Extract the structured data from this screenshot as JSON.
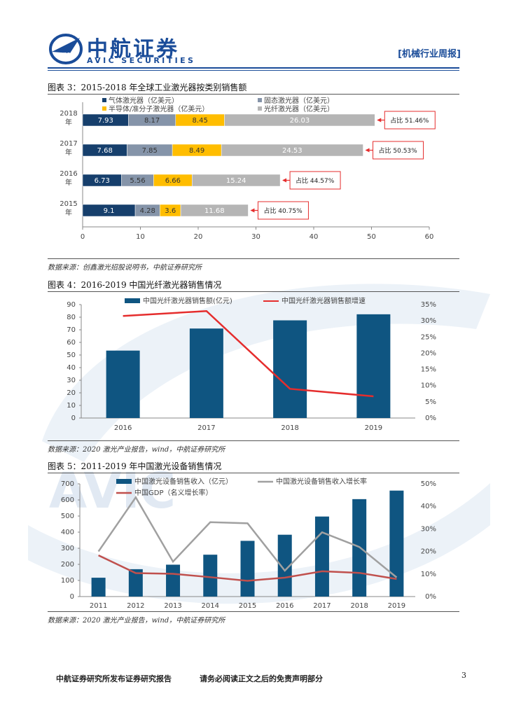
{
  "header": {
    "brand_cn": "中航证券",
    "brand_en": "AVIC SECURITIES",
    "logo_text": "AVIC",
    "report_type": "[机械行业周报]"
  },
  "colors": {
    "brand_blue": "#1a4c99",
    "dark_navy": "#163f6c",
    "steel_gray": "#8594a9",
    "gold": "#ffbd00",
    "light_gray": "#b5b5b5",
    "bar_blue": "#0f5581",
    "red": "#e52d2d",
    "line_gray": "#a0a0a0",
    "dark_red": "#c0504d"
  },
  "figures": [
    {
      "title": "图表 3：2015-2018 年全球工业激光器按类别销售额",
      "source": "数据来源：创鑫激光招股说明书，中航证券研究所",
      "chart_data": {
        "type": "bar",
        "orientation": "horizontal-stacked",
        "categories": [
          "2018年",
          "2017年",
          "2016年",
          "2015年"
        ],
        "category_lines": [
          [
            "2018",
            "年"
          ],
          [
            "2017",
            "年"
          ],
          [
            "2016",
            "年"
          ],
          [
            "2015",
            "年"
          ]
        ],
        "series": [
          {
            "name": "气体激光器（亿美元）",
            "values": [
              7.93,
              7.68,
              6.73,
              9.1
            ]
          },
          {
            "name": "固态激光器（亿美元）",
            "values": [
              8.17,
              7.85,
              5.56,
              4.28
            ]
          },
          {
            "name": "半导体/准分子激光器（亿美元）",
            "values": [
              8.45,
              8.49,
              6.66,
              3.6
            ]
          },
          {
            "name": "光纤激光器（亿美元）",
            "values": [
              26.03,
              24.53,
              15.24,
              11.68
            ]
          }
        ],
        "annotations": [
          "占比 51.46%",
          "占比 50.53%",
          "占比 44.57%",
          "占比 40.75%"
        ],
        "xlim": [
          0,
          60
        ],
        "xticks": [
          "0",
          "10",
          "20",
          "30",
          "40",
          "50",
          "60"
        ]
      }
    },
    {
      "title": "图表 4：2016-2019 中国光纤激光器销售情况",
      "source": "数据来源：2020 激光产业报告，wind，中航证券研究所",
      "chart_data": {
        "type": "bar",
        "categories": [
          "2016",
          "2017",
          "2018",
          "2019"
        ],
        "series": [
          {
            "name": "中国光纤激光器销售额(亿元)",
            "type": "bar",
            "axis": "left",
            "values": [
              53.5,
              71,
              77.5,
              82.3
            ]
          },
          {
            "name": "中国光纤激光器销售额增速",
            "type": "line",
            "axis": "right",
            "values": [
              0.315,
              0.33,
              0.09,
              0.067
            ]
          }
        ],
        "ylim": [
          0,
          90
        ],
        "yticks": [
          "0",
          "10",
          "20",
          "30",
          "40",
          "50",
          "60",
          "70",
          "80",
          "90"
        ],
        "y2lim": [
          0,
          0.35
        ],
        "y2ticks": [
          "0%",
          "5%",
          "10%",
          "15%",
          "20%",
          "25%",
          "30%",
          "35%"
        ]
      }
    },
    {
      "title": "图表 5：2011-2019 年中国激光设备销售情况",
      "source": "数据来源：2020 激光产业报告，wind，中航证券研究所",
      "chart_data": {
        "type": "bar",
        "categories": [
          "2011",
          "2012",
          "2013",
          "2014",
          "2015",
          "2016",
          "2017",
          "2018",
          "2019"
        ],
        "series": [
          {
            "name": "中国激光设备销售收入（亿元）",
            "type": "bar",
            "axis": "left",
            "values": [
              117,
              170,
              198,
              260,
              346,
              384,
              497,
              605,
              658
            ]
          },
          {
            "name": "中国激光设备销售收入增长率",
            "type": "line",
            "axis": "right",
            "values": [
              0.2,
              0.44,
              0.155,
              0.33,
              0.325,
              0.115,
              0.285,
              0.22,
              0.085
            ]
          },
          {
            "name": "中国GDP（名义增长率）",
            "type": "line",
            "axis": "right",
            "values": [
              0.183,
              0.104,
              0.101,
              0.086,
              0.07,
              0.084,
              0.112,
              0.105,
              0.078
            ]
          }
        ],
        "ylim": [
          0,
          700
        ],
        "yticks": [
          "0",
          "100",
          "200",
          "300",
          "400",
          "500",
          "600",
          "700"
        ],
        "y2lim": [
          0,
          0.5
        ],
        "y2ticks": [
          "0%",
          "10%",
          "20%",
          "30%",
          "40%",
          "50%"
        ]
      }
    }
  ],
  "footer": {
    "left": "中航证券研究所发布证券研究报告",
    "middle": "请务必阅读正文之后的免责声明部分",
    "page": "3"
  }
}
